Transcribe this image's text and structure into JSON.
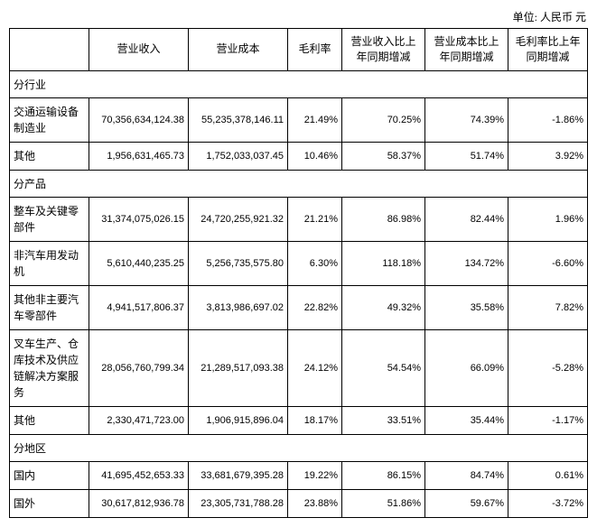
{
  "unit_label": "单位: 人民币  元",
  "columns": [
    "",
    "营业收入",
    "营业成本",
    "毛利率",
    "营业收入比上年同期增减",
    "营业成本比上年同期增减",
    "毛利率比上年同期增减"
  ],
  "sections": [
    {
      "title": "分行业",
      "rows": [
        {
          "label": "交通运输设备制造业",
          "revenue": "70,356,634,124.38",
          "cost": "55,235,378,146.11",
          "gross_margin": "21.49%",
          "rev_change": "70.25%",
          "cost_change": "74.39%",
          "gm_change": "-1.86%"
        },
        {
          "label": "其他",
          "revenue": "1,956,631,465.73",
          "cost": "1,752,033,037.45",
          "gross_margin": "10.46%",
          "rev_change": "58.37%",
          "cost_change": "51.74%",
          "gm_change": "3.92%"
        }
      ]
    },
    {
      "title": "分产品",
      "rows": [
        {
          "label": "整车及关键零部件",
          "revenue": "31,374,075,026.15",
          "cost": "24,720,255,921.32",
          "gross_margin": "21.21%",
          "rev_change": "86.98%",
          "cost_change": "82.44%",
          "gm_change": "1.96%"
        },
        {
          "label": "非汽车用发动机",
          "revenue": "5,610,440,235.25",
          "cost": "5,256,735,575.80",
          "gross_margin": "6.30%",
          "rev_change": "118.18%",
          "cost_change": "134.72%",
          "gm_change": "-6.60%"
        },
        {
          "label": "其他非主要汽车零部件",
          "revenue": "4,941,517,806.37",
          "cost": "3,813,986,697.02",
          "gross_margin": "22.82%",
          "rev_change": "49.32%",
          "cost_change": "35.58%",
          "gm_change": "7.82%"
        },
        {
          "label": "叉车生产、仓库技术及供应链解决方案服务",
          "revenue": "28,056,760,799.34",
          "cost": "21,289,517,093.38",
          "gross_margin": "24.12%",
          "rev_change": "54.54%",
          "cost_change": "66.09%",
          "gm_change": "-5.28%"
        },
        {
          "label": "其他",
          "revenue": "2,330,471,723.00",
          "cost": "1,906,915,896.04",
          "gross_margin": "18.17%",
          "rev_change": "33.51%",
          "cost_change": "35.44%",
          "gm_change": "-1.17%"
        }
      ]
    },
    {
      "title": "分地区",
      "rows": [
        {
          "label": "国内",
          "revenue": "41,695,452,653.33",
          "cost": "33,681,679,395.28",
          "gross_margin": "19.22%",
          "rev_change": "86.15%",
          "cost_change": "84.74%",
          "gm_change": "0.61%"
        },
        {
          "label": "国外",
          "revenue": "30,617,812,936.78",
          "cost": "23,305,731,788.28",
          "gross_margin": "23.88%",
          "rev_change": "51.86%",
          "cost_change": "59.67%",
          "gm_change": "-3.72%"
        }
      ]
    }
  ],
  "colors": {
    "border": "#000000",
    "background": "#ffffff",
    "text": "#000000"
  }
}
